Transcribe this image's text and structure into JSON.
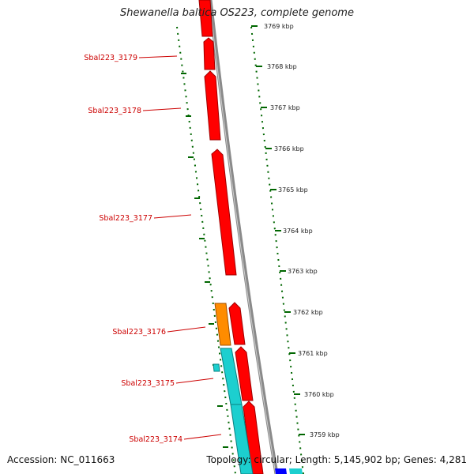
{
  "title": "Shewanella baltica OS223, complete genome",
  "accession": "Accession: NC_011663",
  "summary": "Topology: circular; Length: 5,145,902 bp; Genes: 4,281",
  "colors": {
    "gene_red": "#ff0000",
    "gene_orange": "#ff8c00",
    "gene_cyan": "#1ccfcf",
    "gene_blue": "#0000ff",
    "backbone": "#8a8a8a",
    "tick_green": "#006600",
    "label_red": "#cc0000"
  },
  "kbp_ticks": [
    {
      "label": "3769 kbp"
    },
    {
      "label": "3768 kbp"
    },
    {
      "label": "3767 kbp"
    },
    {
      "label": "3766 kbp"
    },
    {
      "label": "3765 kbp"
    },
    {
      "label": "3764 kbp"
    },
    {
      "label": "3763 kbp"
    },
    {
      "label": "3762 kbp"
    },
    {
      "label": "3761 kbp"
    },
    {
      "label": "3760 kbp"
    },
    {
      "label": "3759 kbp"
    }
  ],
  "gene_labels": [
    {
      "label": "Sbal223_3179"
    },
    {
      "label": "Sbal223_3178"
    },
    {
      "label": "Sbal223_3177"
    },
    {
      "label": "Sbal223_3176"
    },
    {
      "label": "Sbal223_3175"
    },
    {
      "label": "Sbal223_3174"
    }
  ]
}
